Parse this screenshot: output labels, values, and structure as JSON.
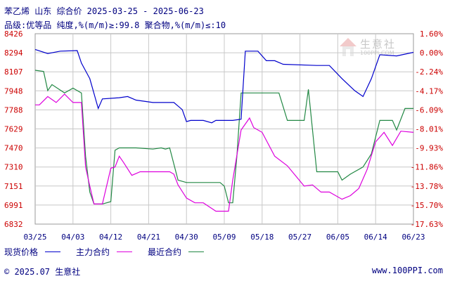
{
  "header": {
    "line1": "苯乙烯 山东 综合价 2025-03-25 - 2025-06-23",
    "line2": "品级:优等品 纯度,%(m/m)≥:99.8 聚合物,%(m/m)≤:10"
  },
  "logo": {
    "name": "生意社",
    "url": "100PPI.COM"
  },
  "legend": {
    "items": [
      {
        "label": "现货价格",
        "color": "#0000cc"
      },
      {
        "label": "主力合约",
        "color": "#dd00dd"
      },
      {
        "label": "最近合约",
        "color": "#228844"
      }
    ]
  },
  "footer": {
    "left": "© 2025.07 生意社",
    "right": "www.100PPI.com"
  },
  "colors": {
    "axis_left": "#cc0000",
    "axis_right": "#cc0000",
    "axis_x": "#000080",
    "grid": "#c8c8c8"
  },
  "chart_data": {
    "type": "line",
    "title": "苯乙烯 山东 综合价 2025-03-25 - 2025-06-23",
    "x_ticks": [
      "03/25",
      "04/03",
      "04/12",
      "04/21",
      "04/30",
      "05/09",
      "05/18",
      "05/27",
      "06/05",
      "06/14",
      "06/23"
    ],
    "y_left_ticks": [
      "8426",
      "8294",
      "8107",
      "7948",
      "7788",
      "7629",
      "7470",
      "7310",
      "7151",
      "6991",
      "6832"
    ],
    "y_right_ticks": [
      "1.60%",
      "0.00%",
      "-2.24%",
      "-4.17%",
      "-6.09%",
      "-8.01%",
      "-9.93%",
      "-11.86%",
      "-13.78%",
      "-15.70%",
      "-17.63%"
    ],
    "ylim": [
      6832,
      8426
    ],
    "series": [
      {
        "name": "现货价格",
        "color": "#0000cc",
        "points": [
          [
            "03/25",
            8294
          ],
          [
            "03/28",
            8260
          ],
          [
            "03/31",
            8280
          ],
          [
            "04/04",
            8285
          ],
          [
            "04/05",
            8180
          ],
          [
            "04/07",
            8050
          ],
          [
            "04/09",
            7800
          ],
          [
            "04/10",
            7880
          ],
          [
            "04/14",
            7890
          ],
          [
            "04/16",
            7900
          ],
          [
            "04/18",
            7870
          ],
          [
            "04/22",
            7850
          ],
          [
            "04/27",
            7850
          ],
          [
            "04/29",
            7790
          ],
          [
            "04/30",
            7690
          ],
          [
            "05/01",
            7700
          ],
          [
            "05/04",
            7700
          ],
          [
            "05/06",
            7680
          ],
          [
            "05/07",
            7700
          ],
          [
            "05/11",
            7700
          ],
          [
            "05/13",
            7710
          ],
          [
            "05/14",
            8280
          ],
          [
            "05/17",
            8280
          ],
          [
            "05/19",
            8200
          ],
          [
            "05/21",
            8200
          ],
          [
            "05/23",
            8170
          ],
          [
            "05/31",
            8160
          ],
          [
            "06/03",
            8160
          ],
          [
            "06/06",
            8050
          ],
          [
            "06/09",
            7950
          ],
          [
            "06/11",
            7900
          ],
          [
            "06/13",
            8050
          ],
          [
            "06/15",
            8250
          ],
          [
            "06/19",
            8240
          ],
          [
            "06/23",
            8270
          ]
        ]
      },
      {
        "name": "主力合约",
        "color": "#dd00dd",
        "points": [
          [
            "03/25",
            7830
          ],
          [
            "03/26",
            7830
          ],
          [
            "03/28",
            7900
          ],
          [
            "03/30",
            7850
          ],
          [
            "04/01",
            7920
          ],
          [
            "04/03",
            7850
          ],
          [
            "04/05",
            7850
          ],
          [
            "04/06",
            7310
          ],
          [
            "04/07",
            7150
          ],
          [
            "04/08",
            7000
          ],
          [
            "04/10",
            7000
          ],
          [
            "04/12",
            7300
          ],
          [
            "04/13",
            7310
          ],
          [
            "04/14",
            7400
          ],
          [
            "04/15",
            7350
          ],
          [
            "04/17",
            7240
          ],
          [
            "04/19",
            7270
          ],
          [
            "04/26",
            7270
          ],
          [
            "04/27",
            7250
          ],
          [
            "04/28",
            7160
          ],
          [
            "04/30",
            7050
          ],
          [
            "05/02",
            7010
          ],
          [
            "05/04",
            7010
          ],
          [
            "05/07",
            6940
          ],
          [
            "05/10",
            6940
          ],
          [
            "05/11",
            7200
          ],
          [
            "05/13",
            7620
          ],
          [
            "05/15",
            7720
          ],
          [
            "05/16",
            7640
          ],
          [
            "05/18",
            7600
          ],
          [
            "05/21",
            7400
          ],
          [
            "05/24",
            7320
          ],
          [
            "05/28",
            7150
          ],
          [
            "05/30",
            7160
          ],
          [
            "06/01",
            7100
          ],
          [
            "06/03",
            7100
          ],
          [
            "06/06",
            7040
          ],
          [
            "06/08",
            7070
          ],
          [
            "06/10",
            7130
          ],
          [
            "06/12",
            7290
          ],
          [
            "06/14",
            7520
          ],
          [
            "06/16",
            7600
          ],
          [
            "06/18",
            7490
          ],
          [
            "06/20",
            7610
          ],
          [
            "06/23",
            7600
          ]
        ]
      },
      {
        "name": "最近合约",
        "color": "#228844",
        "points": [
          [
            "03/25",
            8120
          ],
          [
            "03/27",
            8110
          ],
          [
            "03/28",
            7950
          ],
          [
            "03/29",
            8000
          ],
          [
            "04/01",
            7930
          ],
          [
            "04/03",
            7970
          ],
          [
            "04/05",
            7930
          ],
          [
            "04/06",
            7400
          ],
          [
            "04/07",
            7100
          ],
          [
            "04/08",
            7000
          ],
          [
            "04/10",
            7000
          ],
          [
            "04/12",
            7020
          ],
          [
            "04/13",
            7450
          ],
          [
            "04/14",
            7470
          ],
          [
            "04/18",
            7470
          ],
          [
            "04/22",
            7460
          ],
          [
            "04/24",
            7470
          ],
          [
            "04/25",
            7460
          ],
          [
            "04/26",
            7470
          ],
          [
            "04/28",
            7200
          ],
          [
            "04/30",
            7180
          ],
          [
            "05/08",
            7180
          ],
          [
            "05/09",
            7150
          ],
          [
            "05/10",
            7010
          ],
          [
            "05/11",
            7010
          ],
          [
            "05/12",
            7400
          ],
          [
            "05/13",
            7930
          ],
          [
            "05/15",
            7930
          ],
          [
            "05/22",
            7930
          ],
          [
            "05/24",
            7700
          ],
          [
            "05/28",
            7700
          ],
          [
            "05/29",
            7960
          ],
          [
            "05/31",
            7270
          ],
          [
            "06/05",
            7270
          ],
          [
            "06/06",
            7200
          ],
          [
            "06/08",
            7250
          ],
          [
            "06/11",
            7310
          ],
          [
            "06/13",
            7420
          ],
          [
            "06/15",
            7700
          ],
          [
            "06/18",
            7700
          ],
          [
            "06/19",
            7620
          ],
          [
            "06/21",
            7800
          ],
          [
            "06/23",
            7800
          ]
        ]
      }
    ]
  }
}
